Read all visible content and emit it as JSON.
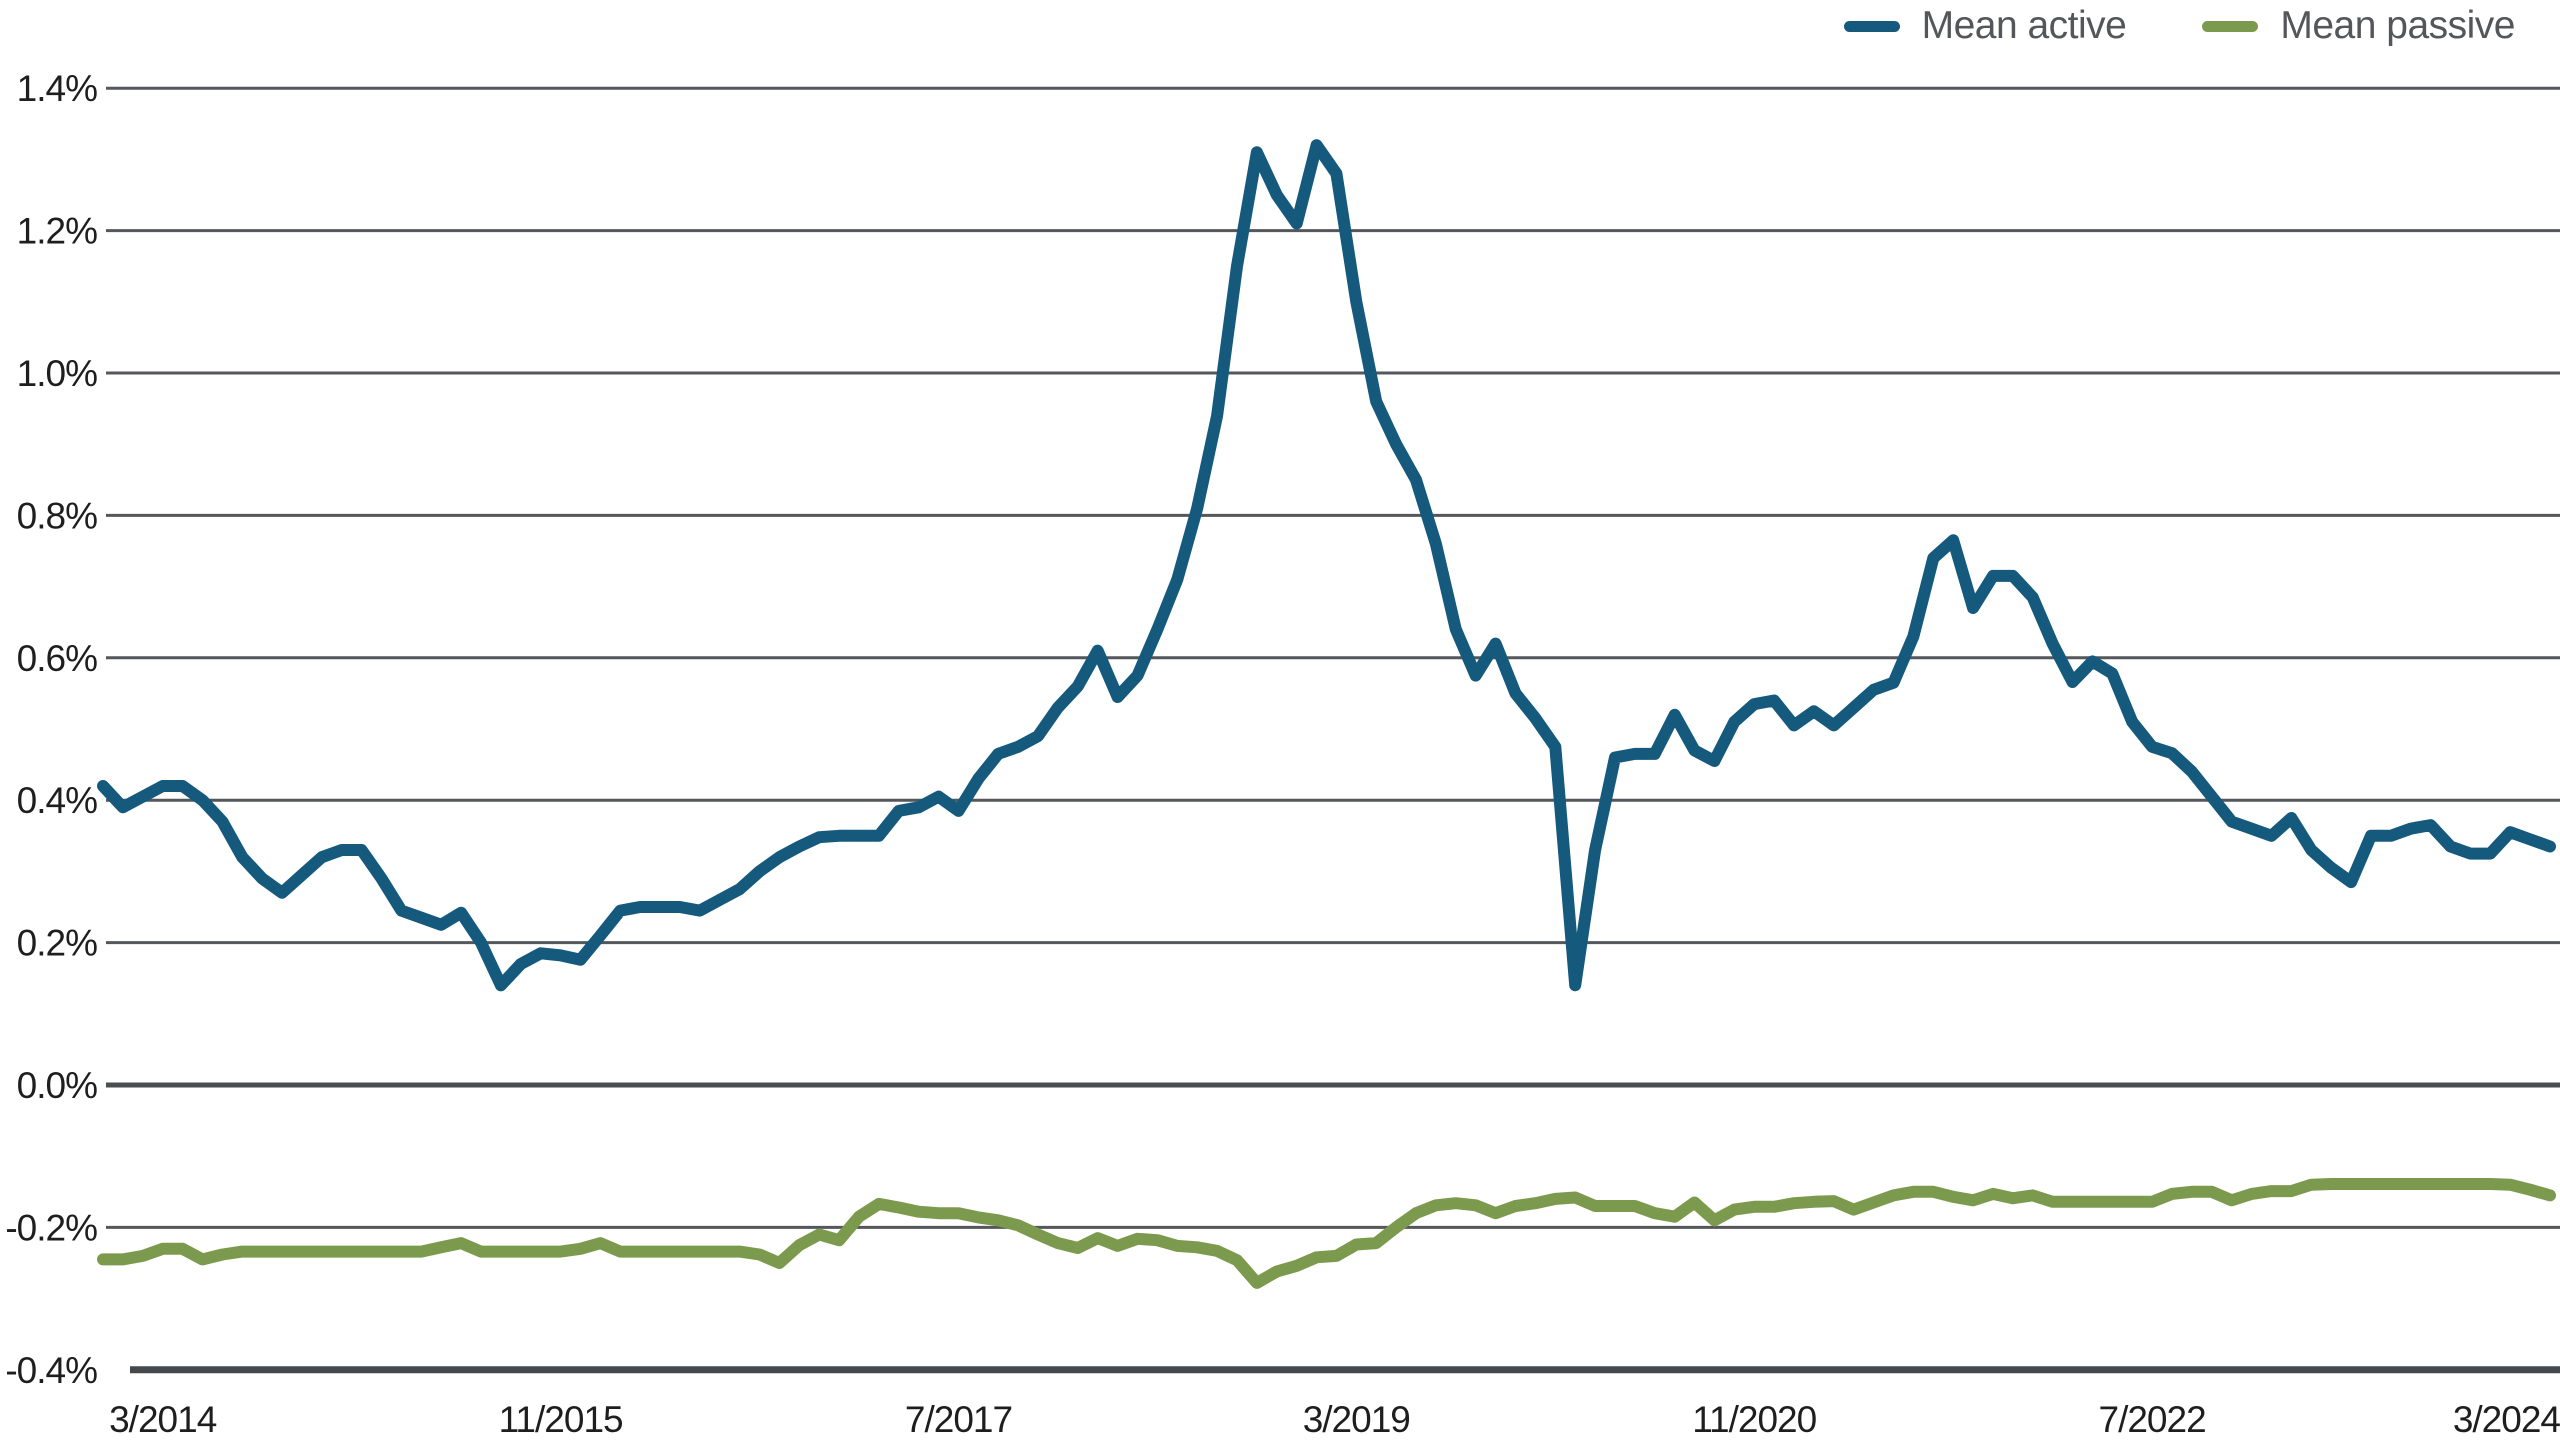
{
  "legend": {
    "items": [
      {
        "label": "Mean active",
        "color": "#15597D"
      },
      {
        "label": "Mean passive",
        "color": "#7C9A4D"
      }
    ]
  },
  "chart_data": {
    "type": "line",
    "title": "",
    "xlabel": "",
    "ylabel": "",
    "legend_position": "top-right",
    "grid": "horizontal",
    "colors": {
      "gridline": "#54575C",
      "zero_line": "#4A4D52",
      "bottom_axis_line": "#45484D",
      "tick_text": "#1E1E1E"
    },
    "x_axis": {
      "frequency": "monthly",
      "start_month": "12/2013",
      "end_month": "3/2024",
      "tick_labels": [
        "3/2014",
        "11/2015",
        "7/2017",
        "3/2019",
        "11/2020",
        "7/2022",
        "3/2024"
      ],
      "tick_month_indices": [
        3,
        23,
        43,
        63,
        83,
        103,
        123
      ]
    },
    "y_axis": {
      "unit": "%",
      "min": -0.4,
      "max": 1.4,
      "step": 0.2,
      "tick_labels": [
        "1.4%",
        "1.2%",
        "1.0%",
        "0.8%",
        "0.6%",
        "0.4%",
        "0.2%",
        "0.0%",
        "-0.2%",
        "-0.4%"
      ]
    },
    "series": [
      {
        "name": "Mean active",
        "color": "#15597D",
        "values": [
          0.42,
          0.39,
          0.405,
          0.42,
          0.42,
          0.4,
          0.37,
          0.32,
          0.29,
          0.27,
          0.295,
          0.32,
          0.33,
          0.33,
          0.29,
          0.245,
          0.235,
          0.225,
          0.242,
          0.2,
          0.14,
          0.17,
          0.185,
          0.182,
          0.176,
          0.21,
          0.245,
          0.25,
          0.25,
          0.25,
          0.245,
          0.26,
          0.275,
          0.3,
          0.32,
          0.335,
          0.348,
          0.35,
          0.35,
          0.35,
          0.385,
          0.39,
          0.405,
          0.385,
          0.43,
          0.465,
          0.475,
          0.49,
          0.53,
          0.56,
          0.61,
          0.545,
          0.575,
          0.64,
          0.71,
          0.81,
          0.94,
          1.15,
          1.31,
          1.25,
          1.21,
          1.32,
          1.28,
          1.1,
          0.96,
          0.9,
          0.85,
          0.76,
          0.64,
          0.575,
          0.62,
          0.55,
          0.515,
          0.475,
          0.14,
          0.33,
          0.46,
          0.465,
          0.465,
          0.52,
          0.47,
          0.455,
          0.51,
          0.535,
          0.54,
          0.505,
          0.525,
          0.505,
          0.53,
          0.555,
          0.565,
          0.63,
          0.74,
          0.765,
          0.67,
          0.715,
          0.715,
          0.685,
          0.62,
          0.566,
          0.595,
          0.578,
          0.51,
          0.475,
          0.466,
          0.44,
          0.405,
          0.37,
          0.36,
          0.35,
          0.375,
          0.33,
          0.305,
          0.285,
          0.35,
          0.35,
          0.36,
          0.365,
          0.335,
          0.325,
          0.325,
          0.355,
          0.345,
          0.335
        ]
      },
      {
        "name": "Mean passive",
        "color": "#7C9A4D",
        "values": [
          -0.245,
          -0.245,
          -0.24,
          -0.23,
          -0.23,
          -0.245,
          -0.238,
          -0.234,
          -0.234,
          -0.234,
          -0.234,
          -0.234,
          -0.234,
          -0.234,
          -0.234,
          -0.234,
          -0.234,
          -0.228,
          -0.222,
          -0.234,
          -0.234,
          -0.234,
          -0.234,
          -0.234,
          -0.23,
          -0.222,
          -0.234,
          -0.234,
          -0.234,
          -0.234,
          -0.234,
          -0.234,
          -0.234,
          -0.238,
          -0.25,
          -0.225,
          -0.21,
          -0.218,
          -0.185,
          -0.167,
          -0.172,
          -0.178,
          -0.18,
          -0.18,
          -0.186,
          -0.19,
          -0.197,
          -0.21,
          -0.222,
          -0.229,
          -0.215,
          -0.226,
          -0.216,
          -0.218,
          -0.226,
          -0.228,
          -0.233,
          -0.246,
          -0.278,
          -0.262,
          -0.254,
          -0.242,
          -0.24,
          -0.224,
          -0.222,
          -0.2,
          -0.18,
          -0.169,
          -0.166,
          -0.169,
          -0.18,
          -0.17,
          -0.166,
          -0.16,
          -0.158,
          -0.17,
          -0.17,
          -0.17,
          -0.18,
          -0.185,
          -0.165,
          -0.19,
          -0.175,
          -0.171,
          -0.171,
          -0.166,
          -0.164,
          -0.163,
          -0.175,
          -0.165,
          -0.155,
          -0.15,
          -0.15,
          -0.157,
          -0.162,
          -0.153,
          -0.159,
          -0.155,
          -0.164,
          -0.164,
          -0.164,
          -0.164,
          -0.164,
          -0.164,
          -0.153,
          -0.15,
          -0.15,
          -0.162,
          -0.153,
          -0.149,
          -0.149,
          -0.14,
          -0.139,
          -0.139,
          -0.139,
          -0.139,
          -0.139,
          -0.139,
          -0.139,
          -0.139,
          -0.139,
          -0.14,
          -0.147,
          -0.155
        ]
      }
    ]
  }
}
